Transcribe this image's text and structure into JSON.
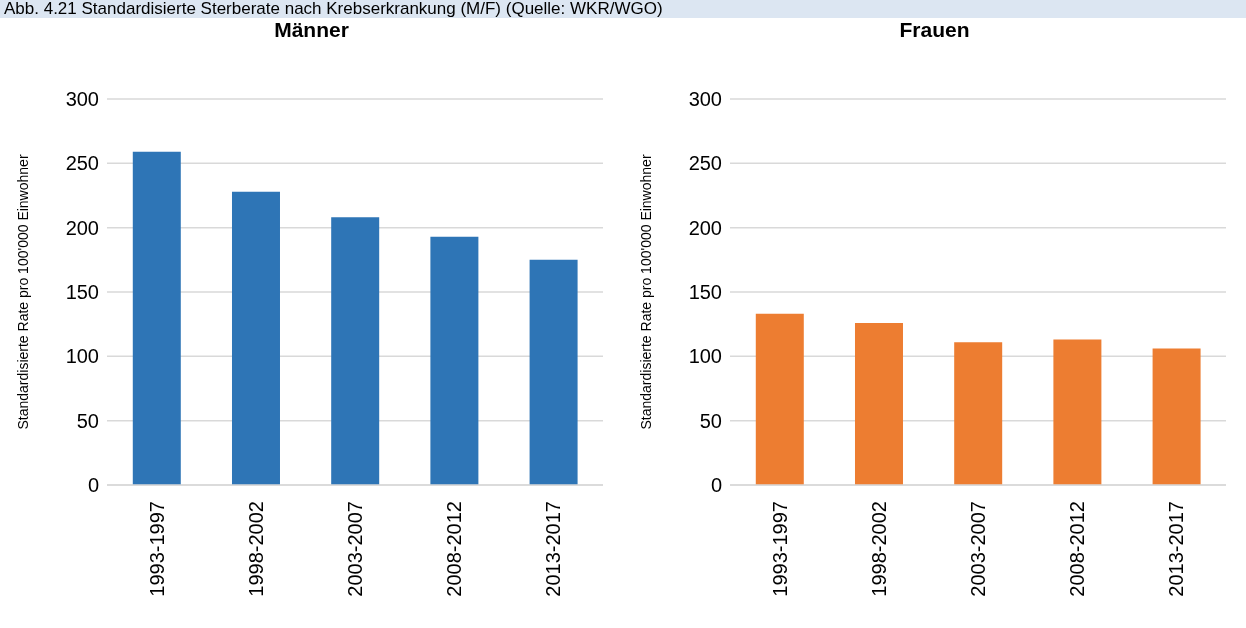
{
  "chart_data": [
    {
      "type": "bar",
      "title": "Männer",
      "ylabel": "Standardisierte Rate pro 100'000 Einwohner",
      "annotations": [
        "Abb. 4.21 Standardisierte Sterberate nach Krebserkrankung (M/F) (Quelle: WKR/WGO)"
      ],
      "categories": [
        "1993-1997",
        "1998-2002",
        "2003-2007",
        "2008-2012",
        "2013-2017"
      ],
      "values": [
        259,
        228,
        208,
        193,
        175
      ],
      "color": "#2e75b6",
      "ylim": [
        0,
        300
      ],
      "yticks": [
        0,
        50,
        100,
        150,
        200,
        250,
        300
      ],
      "grid": "y"
    },
    {
      "type": "bar",
      "title": "Frauen",
      "ylabel": "Standardisierte Rate pro 100'000 Einwohner",
      "categories": [
        "1993-1997",
        "1998-2002",
        "2003-2007",
        "2008-2012",
        "2013-2017"
      ],
      "values": [
        133,
        126,
        111,
        113,
        106
      ],
      "color": "#ed7d31",
      "ylim": [
        0,
        300
      ],
      "yticks": [
        0,
        50,
        100,
        150,
        200,
        250,
        300
      ],
      "grid": "y"
    }
  ]
}
